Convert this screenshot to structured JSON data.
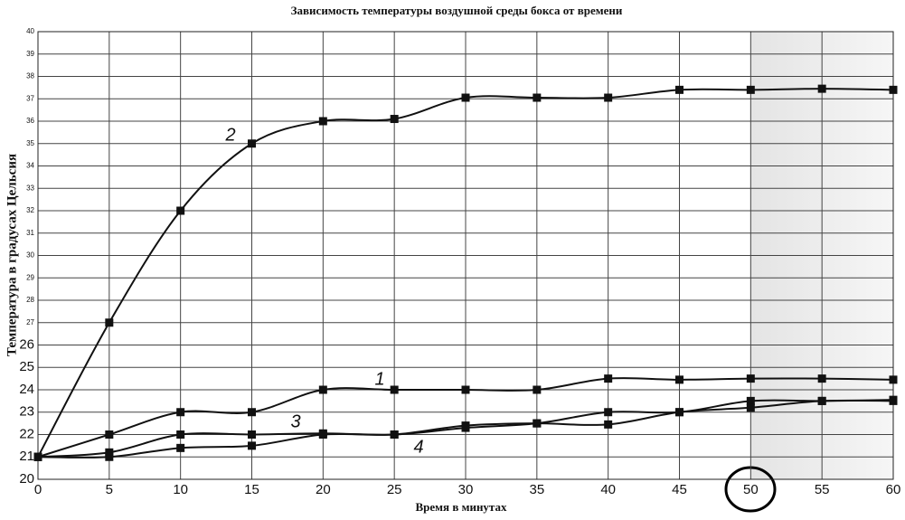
{
  "chart_data": {
    "type": "line",
    "title": "Зависимость температуры воздушной среды бокса от времени",
    "x_label": "Время в минутах",
    "y_label": "Температура в градусах Цельсия",
    "x": [
      0,
      5,
      10,
      15,
      20,
      25,
      30,
      35,
      40,
      45,
      50,
      55,
      60
    ],
    "series": [
      {
        "name": "1",
        "color": "#111111",
        "values": [
          21,
          22,
          23,
          23,
          24,
          24,
          24,
          24,
          24.5,
          24.45,
          24.5,
          24.5,
          24.45
        ]
      },
      {
        "name": "2",
        "color": "#111111",
        "values": [
          21,
          27,
          32,
          35,
          36,
          36.1,
          37.05,
          37.05,
          37.05,
          37.4,
          37.4,
          37.45,
          37.4
        ]
      },
      {
        "name": "3",
        "color": "#111111",
        "values": [
          21,
          21.2,
          22,
          22,
          22.05,
          22,
          22.3,
          22.5,
          23,
          23,
          23.5,
          23.5,
          23.55
        ]
      },
      {
        "name": "4",
        "color": "#111111",
        "values": [
          21,
          21,
          21.4,
          21.5,
          22,
          22,
          22.4,
          22.5,
          22.45,
          23,
          23.2,
          23.5,
          23.5
        ]
      }
    ],
    "xlim": [
      0,
      60
    ],
    "xticks": [
      0,
      5,
      10,
      15,
      20,
      25,
      30,
      35,
      40,
      45,
      50,
      55,
      60
    ],
    "ylim": [
      20,
      40
    ],
    "yticks": [
      20,
      21,
      22,
      23,
      24,
      25,
      26,
      27,
      28,
      29,
      30,
      31,
      32,
      33,
      34,
      35,
      36,
      37,
      38,
      39,
      40
    ],
    "grid": true
  }
}
